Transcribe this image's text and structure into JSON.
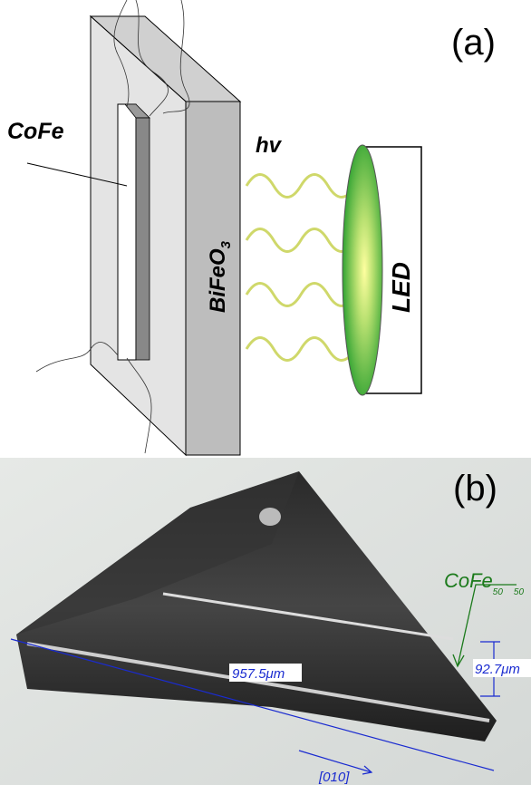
{
  "panel_a": {
    "label": "(a)",
    "cofe": "CoFe",
    "hv": "hv",
    "bifeo": "BiFeO",
    "bifeo_sub": "3",
    "led": "LED"
  },
  "panel_b": {
    "label": "(b)",
    "cofe": "CoFe",
    "cofe_sub1": "50",
    "cofe_sub2": "50",
    "length": "957.5μm",
    "width": "92.7μm",
    "direction": "[010]"
  }
}
